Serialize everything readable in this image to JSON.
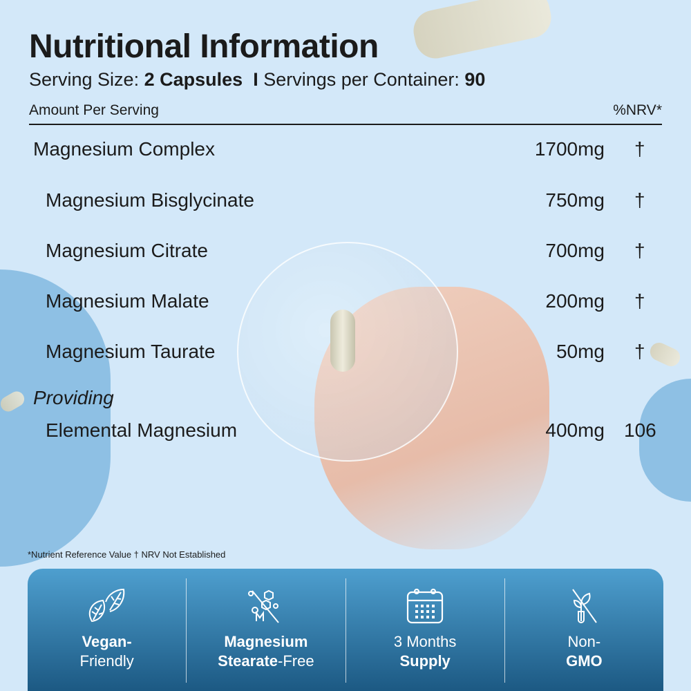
{
  "title": "Nutritional Information",
  "serving": {
    "size_label": "Serving Size:",
    "size_value": "2 Capsules",
    "separator": "I",
    "per_container_label": "Servings per Container:",
    "per_container_value": "90"
  },
  "header": {
    "amount": "Amount Per Serving",
    "nrv": "%NRV*"
  },
  "rows": [
    {
      "name": "Magnesium Complex",
      "amount": "1700mg",
      "nrv": "†"
    },
    {
      "name": "Magnesium Bisglycinate",
      "amount": "750mg",
      "nrv": "†"
    },
    {
      "name": "Magnesium Citrate",
      "amount": "700mg",
      "nrv": "†"
    },
    {
      "name": "Magnesium Malate",
      "amount": "200mg",
      "nrv": "†"
    },
    {
      "name": "Magnesium Taurate",
      "amount": "50mg",
      "nrv": "†"
    }
  ],
  "providing": "Providing",
  "elemental": {
    "name": "Elemental Magnesium",
    "amount": "400mg",
    "nrv": "106"
  },
  "footnote": "*Nutrient Reference Value † NRV Not Established",
  "features": [
    {
      "icon": "leaves-icon",
      "line1": "Vegan-",
      "line2": "Friendly"
    },
    {
      "icon": "no-molecule-icon",
      "line1": "Magnesium",
      "line2a": "Stearate",
      "line2b": "-Free"
    },
    {
      "icon": "calendar-icon",
      "line1": "3 Months",
      "line2": "Supply"
    },
    {
      "icon": "no-gmo-plant-icon",
      "line1": "Non-",
      "line2": "GMO"
    }
  ],
  "colors": {
    "background": "#d3e8f9",
    "panel_top": "#4e9fcf",
    "panel_bottom": "#1c5983",
    "circle": "#8ec0e4"
  }
}
